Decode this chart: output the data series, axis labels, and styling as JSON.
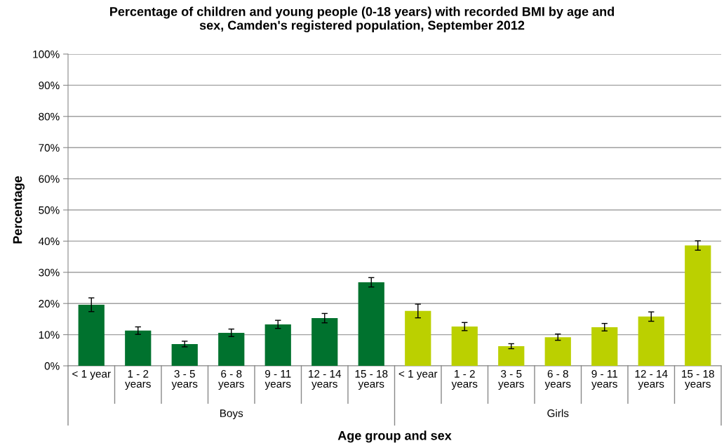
{
  "chart_data": {
    "type": "bar",
    "title": "Percentage of children and young people (0-18 years) with recorded BMI by age and\nsex, Camden's registered population, September 2012",
    "xlabel": "Age group and sex",
    "ylabel": "Percentage",
    "categories": [
      "< 1 year",
      "1 - 2\nyears",
      "3 - 5\nyears",
      "6 - 8\nyears",
      "9 - 11\nyears",
      "12 - 14\nyears",
      "15 - 18\nyears",
      "< 1 year",
      "1 - 2\nyears",
      "3 - 5\nyears",
      "6 - 8\nyears",
      "9 - 11\nyears",
      "12 - 14\nyears",
      "15 - 18\nyears"
    ],
    "values": [
      19.6,
      11.3,
      7.0,
      10.6,
      13.3,
      15.3,
      26.8,
      17.6,
      12.6,
      6.3,
      9.2,
      12.4,
      15.8,
      38.6
    ],
    "errors": [
      2.2,
      1.2,
      0.9,
      1.2,
      1.3,
      1.5,
      1.5,
      2.2,
      1.3,
      0.8,
      1.0,
      1.2,
      1.5,
      1.5
    ],
    "colors": [
      "#00722e",
      "#00722e",
      "#00722e",
      "#00722e",
      "#00722e",
      "#00722e",
      "#00722e",
      "#bbd000",
      "#bbd000",
      "#bbd000",
      "#bbd000",
      "#bbd000",
      "#bbd000",
      "#bbd000"
    ],
    "annotations": [
      "Boys",
      "Girls"
    ],
    "ylim": [
      0,
      100
    ],
    "yticks": [
      {
        "value": 0,
        "label": "0%"
      },
      {
        "value": 10,
        "label": "10%"
      },
      {
        "value": 20,
        "label": "20%"
      },
      {
        "value": 30,
        "label": "30%"
      },
      {
        "value": 40,
        "label": "40%"
      },
      {
        "value": 50,
        "label": "50%"
      },
      {
        "value": 60,
        "label": "60%"
      },
      {
        "value": 70,
        "label": "70%"
      },
      {
        "value": 80,
        "label": "80%"
      },
      {
        "value": 90,
        "label": "90%"
      },
      {
        "value": 100,
        "label": "100%"
      }
    ],
    "grid": "y"
  }
}
